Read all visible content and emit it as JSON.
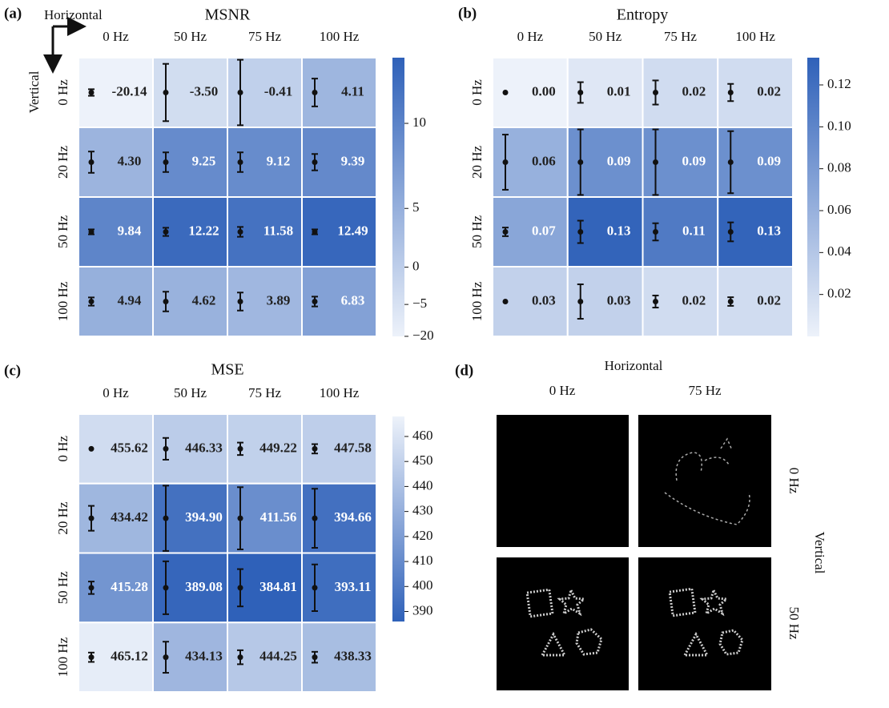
{
  "chart_data": [
    {
      "type": "heatmap",
      "panel": "(a)",
      "title": "MSNR",
      "x_label": "Horizontal",
      "y_label": "Vertical",
      "categories": [
        "0 Hz",
        "50 Hz",
        "75 Hz",
        "100 Hz"
      ],
      "y_categories": [
        "0 Hz",
        "20 Hz",
        "50 Hz",
        "100 Hz"
      ],
      "values": [
        [
          -20.14,
          -3.5,
          -0.41,
          4.11
        ],
        [
          4.3,
          9.25,
          9.12,
          9.39
        ],
        [
          9.84,
          12.22,
          11.58,
          12.49
        ],
        [
          4.94,
          4.62,
          3.89,
          6.83
        ]
      ],
      "value_labels": [
        [
          "-20.14",
          "-3.50",
          "-0.41",
          "4.11"
        ],
        [
          "4.30",
          "9.25",
          "9.12",
          "9.39"
        ],
        [
          "9.84",
          "12.22",
          "11.58",
          "12.49"
        ],
        [
          "4.94",
          "4.62",
          "3.89",
          "6.83"
        ]
      ],
      "errors": [
        [
          0.4,
          3.5,
          4.0,
          1.7
        ],
        [
          1.3,
          1.2,
          1.2,
          1.0
        ],
        [
          0.3,
          0.5,
          0.6,
          0.3
        ],
        [
          0.5,
          1.2,
          1.1,
          0.6
        ]
      ],
      "zlim": [
        -22,
        13
      ],
      "zticks": [
        {
          "value": -20,
          "label": "−20"
        },
        {
          "value": -5,
          "label": "−5"
        },
        0,
        5,
        10
      ],
      "gamma": 3,
      "reversed": false
    },
    {
      "type": "heatmap",
      "panel": "(b)",
      "title": "Entropy",
      "categories": [
        "0 Hz",
        "50 Hz",
        "75 Hz",
        "100 Hz"
      ],
      "y_categories": [
        "0 Hz",
        "20 Hz",
        "50 Hz",
        "100 Hz"
      ],
      "values": [
        [
          0,
          0.01,
          0.02,
          0.02
        ],
        [
          0.06,
          0.09,
          0.09,
          0.09
        ],
        [
          0.07,
          0.13,
          0.11,
          0.13
        ],
        [
          0.03,
          0.03,
          0.02,
          0.02
        ]
      ],
      "value_labels": [
        [
          "0.00",
          "0.01",
          "0.02",
          "0.02"
        ],
        [
          "0.06",
          "0.09",
          "0.09",
          "0.09"
        ],
        [
          "0.07",
          "0.13",
          "0.11",
          "0.13"
        ],
        [
          "0.03",
          "0.03",
          "0.02",
          "0.02"
        ]
      ],
      "errors": [
        [
          0,
          0.012,
          0.014,
          0.01
        ],
        [
          0.032,
          0.038,
          0.038,
          0.036
        ],
        [
          0.005,
          0.013,
          0.01,
          0.011
        ],
        [
          0,
          0.02,
          0.007,
          0.005
        ]
      ],
      "zlim": [
        0,
        0.133
      ],
      "zticks": [
        0.02,
        0.04,
        0.06,
        0.08,
        {
          "value": 0.1,
          "label": "0.10"
        },
        0.12
      ],
      "gamma": 1,
      "reversed": false
    },
    {
      "type": "heatmap",
      "panel": "(c)",
      "title": "MSE",
      "categories": [
        "0 Hz",
        "50 Hz",
        "75 Hz",
        "100 Hz"
      ],
      "y_categories": [
        "0 Hz",
        "20 Hz",
        "50 Hz",
        "100 Hz"
      ],
      "values": [
        [
          455.62,
          446.33,
          449.22,
          447.58
        ],
        [
          434.42,
          394.9,
          411.56,
          394.66
        ],
        [
          415.28,
          389.08,
          384.81,
          393.11
        ],
        [
          465.12,
          434.13,
          444.25,
          438.33
        ]
      ],
      "value_labels": [
        [
          "455.62",
          "446.33",
          "449.22",
          "447.58"
        ],
        [
          "434.42",
          "394.90",
          "411.56",
          "394.66"
        ],
        [
          "415.28",
          "389.08",
          "384.81",
          "393.11"
        ],
        [
          "465.12",
          "434.13",
          "444.25",
          "438.33"
        ]
      ],
      "errors": [
        [
          0,
          7,
          4,
          3
        ],
        [
          8,
          21,
          20,
          19
        ],
        [
          4,
          17,
          12,
          15
        ],
        [
          3,
          10,
          4.5,
          3.5
        ]
      ],
      "zlim": [
        386,
        468
      ],
      "zticks": [
        390,
        400,
        410,
        420,
        430,
        440,
        450,
        460
      ],
      "gamma": 1,
      "reversed": true
    },
    {
      "type": "image_grid",
      "panel": "(d)",
      "x_label": "Horizontal",
      "categories": [
        "0 Hz",
        "75 Hz"
      ],
      "y_label": "Vertical",
      "y_categories": [
        "0 Hz",
        "50 Hz"
      ]
    }
  ]
}
